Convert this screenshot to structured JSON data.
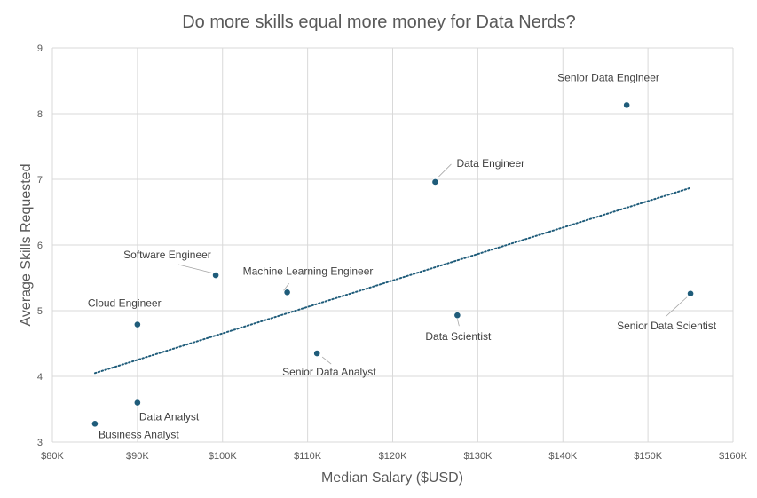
{
  "chart_data": {
    "type": "scatter",
    "title": "Do more skills equal more money for Data Nerds?",
    "xlabel": "Median Salary ($USD)",
    "ylabel": "Average Skills Requested",
    "xlim": [
      80000,
      160000
    ],
    "ylim": [
      3,
      9
    ],
    "x_ticks": [
      80000,
      90000,
      100000,
      110000,
      120000,
      130000,
      140000,
      150000,
      160000
    ],
    "x_tick_labels": [
      "$80K",
      "$90K",
      "$100K",
      "$110K",
      "$120K",
      "$130K",
      "$140K",
      "$150K",
      "$160K"
    ],
    "y_ticks": [
      3,
      4,
      5,
      6,
      7,
      8,
      9
    ],
    "y_tick_labels": [
      "3",
      "4",
      "5",
      "6",
      "7",
      "8",
      "9"
    ],
    "grid": true,
    "trendline": {
      "type": "linear",
      "style": "dotted",
      "from": [
        85000,
        4.05
      ],
      "to": [
        155000,
        6.87
      ]
    },
    "points": [
      {
        "label": "Business Analyst",
        "x": 85000,
        "y": 3.28
      },
      {
        "label": "Data Analyst",
        "x": 90000,
        "y": 3.6
      },
      {
        "label": "Cloud Engineer",
        "x": 90000,
        "y": 4.79
      },
      {
        "label": "Software Engineer",
        "x": 99200,
        "y": 5.54
      },
      {
        "label": "Machine Learning Engineer",
        "x": 107600,
        "y": 5.28
      },
      {
        "label": "Senior Data Analyst",
        "x": 111100,
        "y": 4.35
      },
      {
        "label": "Data Engineer",
        "x": 125000,
        "y": 6.96
      },
      {
        "label": "Data Scientist",
        "x": 127600,
        "y": 4.93
      },
      {
        "label": "Senior Data Engineer",
        "x": 147500,
        "y": 8.13
      },
      {
        "label": "Senior Data Scientist",
        "x": 155000,
        "y": 5.26
      }
    ],
    "colors": {
      "marker": "#1f5c7a",
      "trendline": "#1f5c7a",
      "grid": "#d9d9d9",
      "text": "#595959"
    }
  }
}
